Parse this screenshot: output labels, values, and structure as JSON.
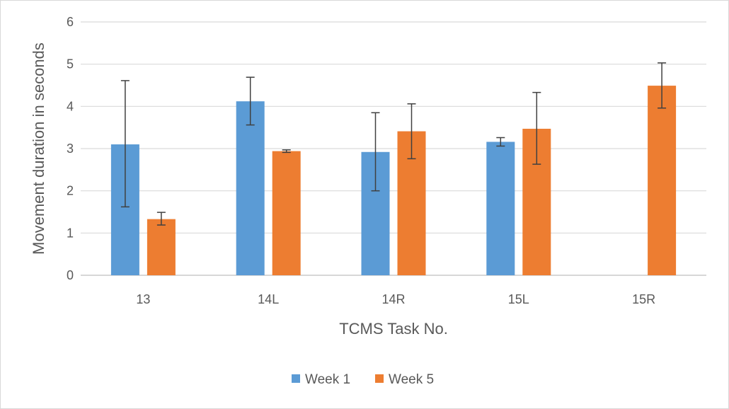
{
  "chart_data": {
    "type": "bar",
    "title": "",
    "xlabel": "TCMS Task No.",
    "ylabel": "Movement duration in seconds",
    "categories": [
      "13",
      "14L",
      "14R",
      "15L",
      "15R"
    ],
    "ylim": [
      0,
      6
    ],
    "yticks": [
      "0",
      "1",
      "2",
      "3",
      "4",
      "5",
      "6"
    ],
    "grid": true,
    "legend_position": "bottom",
    "series": [
      {
        "name": "Week 1",
        "color": "#5b9bd5",
        "values": [
          3.1,
          4.12,
          2.92,
          3.16,
          null
        ],
        "error_low": [
          1.62,
          3.56,
          2.0,
          3.06,
          null
        ],
        "error_high": [
          4.61,
          4.69,
          3.85,
          3.26,
          null
        ]
      },
      {
        "name": "Week 5",
        "color": "#ed7d31",
        "values": [
          1.33,
          2.94,
          3.41,
          3.47,
          4.49
        ],
        "error_low": [
          1.19,
          2.91,
          2.76,
          2.63,
          3.96
        ],
        "error_high": [
          1.49,
          2.97,
          4.06,
          4.33,
          5.03
        ]
      }
    ]
  }
}
